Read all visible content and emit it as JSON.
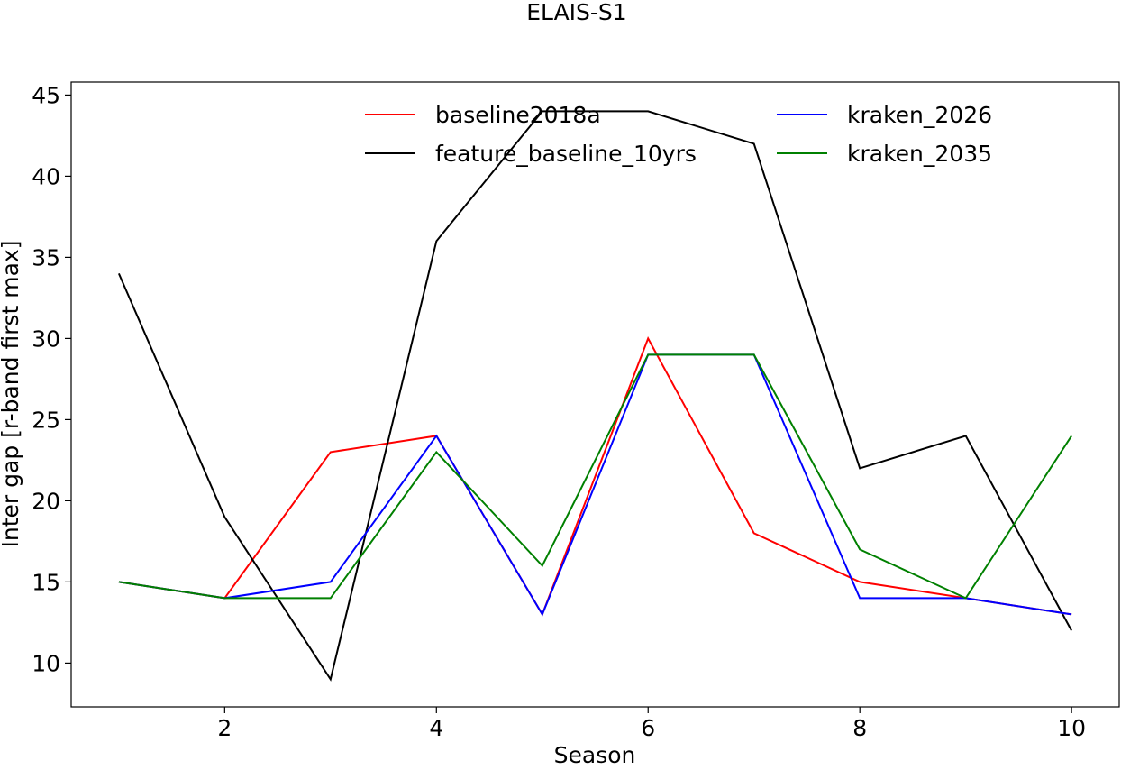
{
  "chart_data": {
    "type": "line",
    "title": "ELAIS-S1",
    "xlabel": "Season",
    "ylabel": "Inter gap [r-band first max]",
    "x": [
      1,
      2,
      3,
      4,
      5,
      6,
      7,
      8,
      9,
      10
    ],
    "xlim": [
      0.55,
      10.45
    ],
    "ylim": [
      7.3,
      45.8
    ],
    "xticks": [
      2,
      4,
      6,
      8,
      10
    ],
    "yticks": [
      10,
      15,
      20,
      25,
      30,
      35,
      40,
      45
    ],
    "grid": false,
    "legend_position": "upper-center",
    "series": [
      {
        "name": "baseline2018a",
        "color": "#ff0000",
        "values": [
          15,
          14,
          23,
          24,
          13,
          30,
          18,
          15,
          14,
          13
        ]
      },
      {
        "name": "feature_baseline_10yrs",
        "color": "#000000",
        "values": [
          34,
          19,
          9,
          36,
          44,
          44,
          42,
          22,
          24,
          12
        ]
      },
      {
        "name": "kraken_2026",
        "color": "#0000ff",
        "values": [
          15,
          14,
          15,
          24,
          13,
          29,
          29,
          14,
          14,
          13
        ]
      },
      {
        "name": "kraken_2035",
        "color": "#008000",
        "values": [
          15,
          14,
          14,
          23,
          16,
          29,
          29,
          17,
          14,
          24
        ]
      }
    ]
  }
}
